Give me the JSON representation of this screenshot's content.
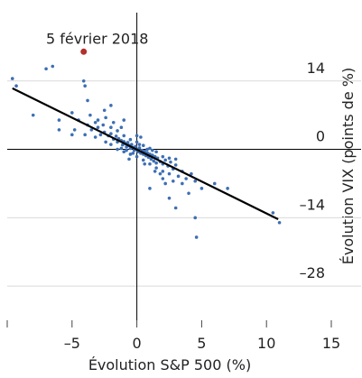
{
  "chart_data": {
    "type": "scatter",
    "x_label": "Évolution S&P 500 (%)",
    "y_label": "Évolution VIX (points de %)",
    "xlim": [
      -10,
      15
    ],
    "ylim": [
      -35,
      28
    ],
    "xticks": [
      {
        "value": -5,
        "label": "–5"
      },
      0,
      5,
      10,
      15
    ],
    "yticks": [
      14,
      0,
      {
        "value": -14,
        "label": "–14"
      },
      {
        "value": -28,
        "label": "–28"
      }
    ],
    "grid": true,
    "points": {
      "color": "#3d6fb4",
      "x": [
        -2.5,
        -2.2,
        -2,
        -1.8,
        -1.6,
        -1.5,
        -1.4,
        -1.2,
        -1.1,
        -1,
        -0.9,
        -0.8,
        -0.7,
        -0.6,
        -0.5,
        -0.4,
        -0.3,
        -0.2,
        -0.1,
        0,
        0.1,
        0.2,
        0.3,
        0.4,
        0.5,
        0.6,
        0.7,
        0.8,
        0.9,
        1,
        1.1,
        1.2,
        1.3,
        1.4,
        1.5,
        1.6,
        1.8,
        2,
        2.2,
        2.4,
        2.6,
        2.8,
        3,
        -3,
        -2.8,
        -3.2,
        -3.5,
        -3.8,
        -4,
        -2.6,
        -2,
        -1.5,
        -1,
        -0.5,
        0,
        0.5,
        1,
        1.5,
        2,
        2.5,
        3,
        -2,
        -1.5,
        -1,
        -0.5,
        0,
        0.5,
        1,
        1.5,
        2,
        2.5,
        3.5,
        3.8,
        4.2,
        -0.3,
        0.2,
        0.8,
        -0.8,
        1.2,
        -1.2,
        -2.4,
        -3.2,
        -4.5,
        -5,
        -4.8,
        3.2,
        2.8,
        1.8,
        4.5,
        -1.8,
        -2.4,
        -1.2,
        0.3,
        1.4,
        2.2,
        -0.6,
        0,
        0.6,
        -3.6,
        -1,
        -9.6,
        -9.3,
        -6.5,
        -7,
        -8,
        -6,
        -4,
        -4.1,
        -3.8,
        4.5,
        4.6,
        10.5,
        11,
        3,
        5,
        -5,
        -6,
        -3,
        -2.5,
        -2,
        2.5,
        3.5,
        4,
        6,
        7,
        1,
        2
      ],
      "y": [
        3.5,
        2.8,
        3.2,
        2.1,
        2.7,
        1.5,
        2.2,
        1.8,
        0.9,
        1.6,
        1.2,
        0.5,
        1.4,
        0.8,
        0.2,
        1,
        0.4,
        -0.2,
        0.6,
        0,
        -0.5,
        0.3,
        -0.8,
        -0.2,
        -1,
        -0.4,
        -1.3,
        -0.7,
        -1.6,
        -1,
        -2,
        -1.2,
        -2.4,
        -1.5,
        -2.8,
        -1.8,
        -2.5,
        -3,
        -2.2,
        -3.4,
        -2.6,
        -4,
        -3.2,
        4.5,
        3,
        5.5,
        4,
        5,
        3,
        5,
        4.5,
        3.8,
        2.8,
        2,
        1.5,
        0.8,
        0.2,
        -0.5,
        -1.5,
        -1.8,
        -2,
        1,
        0,
        -0.5,
        -1,
        -1.5,
        -2.2,
        -3,
        -3.8,
        -4.5,
        -5,
        -4.5,
        -6,
        -5,
        -0.8,
        1,
        0,
        -0.2,
        -0.2,
        0.2,
        1.5,
        2.5,
        6,
        7.5,
        4,
        -5.5,
        -6.5,
        -5,
        -6.5,
        5.5,
        6.5,
        4.5,
        2.5,
        -4.5,
        -7,
        -2,
        2.8,
        -3,
        7,
        6,
        14.5,
        13,
        17,
        16.5,
        7,
        6,
        13,
        14,
        10,
        -14,
        -18,
        -13,
        -15,
        -12,
        -8,
        3,
        4,
        6,
        8,
        9,
        -10,
        -7,
        -9,
        -7,
        -8,
        -8,
        -6
      ]
    },
    "fit_line": {
      "color": "#000000",
      "x": [
        -9.6,
        10.9
      ],
      "y": [
        12.5,
        -14.3
      ]
    },
    "annotation": {
      "text": "5 février 2018",
      "x": -4.1,
      "y": 20,
      "color": "#b5302a"
    }
  }
}
